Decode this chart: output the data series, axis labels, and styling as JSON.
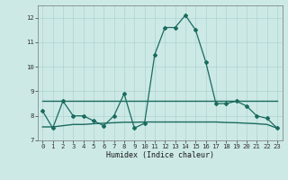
{
  "xlabel": "Humidex (Indice chaleur)",
  "x": [
    0,
    1,
    2,
    3,
    4,
    5,
    6,
    7,
    8,
    9,
    10,
    11,
    12,
    13,
    14,
    15,
    16,
    17,
    18,
    19,
    20,
    21,
    22,
    23
  ],
  "y_main": [
    8.2,
    7.5,
    8.6,
    8.0,
    8.0,
    7.8,
    7.6,
    8.0,
    8.9,
    7.5,
    7.7,
    10.5,
    11.6,
    11.6,
    12.1,
    11.5,
    10.2,
    8.5,
    8.5,
    8.6,
    8.4,
    8.0,
    7.9,
    7.5
  ],
  "y_upper": [
    8.6,
    8.6,
    8.6,
    8.6,
    8.6,
    8.6,
    8.6,
    8.6,
    8.6,
    8.6,
    8.6,
    8.6,
    8.6,
    8.6,
    8.6,
    8.6,
    8.6,
    8.6,
    8.6,
    8.6,
    8.6,
    8.6,
    8.6,
    8.6
  ],
  "y_lower": [
    7.55,
    7.55,
    7.6,
    7.65,
    7.65,
    7.68,
    7.7,
    7.72,
    7.74,
    7.74,
    7.75,
    7.75,
    7.75,
    7.75,
    7.75,
    7.75,
    7.75,
    7.75,
    7.73,
    7.72,
    7.7,
    7.68,
    7.65,
    7.5
  ],
  "line_color": "#1a6b5e",
  "bg_color": "#cce9e6",
  "grid_color": "#afd4d0",
  "ylim": [
    7.0,
    12.5
  ],
  "xlim_min": -0.5,
  "xlim_max": 23.5,
  "yticks": [
    7,
    8,
    9,
    10,
    11,
    12
  ],
  "xticks": [
    0,
    1,
    2,
    3,
    4,
    5,
    6,
    7,
    8,
    9,
    10,
    11,
    12,
    13,
    14,
    15,
    16,
    17,
    18,
    19,
    20,
    21,
    22,
    23
  ]
}
